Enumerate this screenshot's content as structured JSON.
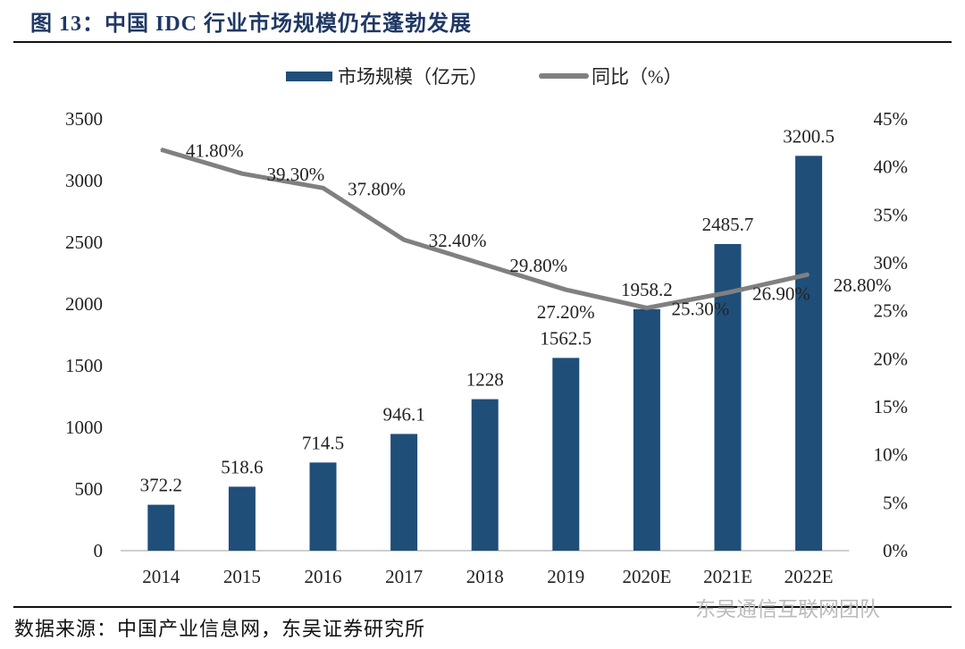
{
  "title": "图 13：中国 IDC 行业市场规模仍在蓬勃发展",
  "source": "数据来源：中国产业信息网，东吴证券研究所",
  "watermark": "东吴通信互联网团队",
  "colors": {
    "bar": "#1f4e79",
    "line": "#808080",
    "title": "#1f3864"
  },
  "chart_data": {
    "type": "bar+line",
    "categories": [
      "2014",
      "2015",
      "2016",
      "2017",
      "2018",
      "2019",
      "2020E",
      "2021E",
      "2022E"
    ],
    "series": [
      {
        "name": "市场规模（亿元）",
        "type": "bar",
        "axis": "left",
        "values": [
          372.2,
          518.6,
          714.5,
          946.1,
          1228,
          1562.5,
          1958.2,
          2485.7,
          3200.5
        ],
        "labels": [
          "372.2",
          "518.6",
          "714.5",
          "946.1",
          "1228",
          "1562.5",
          "1958.2",
          "2485.7",
          "3200.5"
        ]
      },
      {
        "name": "同比（%）",
        "type": "line",
        "axis": "right",
        "values": [
          41.8,
          39.3,
          37.8,
          32.4,
          29.8,
          27.2,
          25.3,
          26.9,
          28.8
        ],
        "labels": [
          "41.80%",
          "39.30%",
          "37.80%",
          "32.40%",
          "29.80%",
          "27.20%",
          "25.30%",
          "26.90%",
          "28.80%"
        ]
      }
    ],
    "ylim_left": [
      0,
      3500
    ],
    "yticks_left": [
      "0",
      "500",
      "1000",
      "1500",
      "2000",
      "2500",
      "3000",
      "3500"
    ],
    "ylim_right": [
      0,
      45
    ],
    "yticks_right": [
      "0%",
      "5%",
      "10%",
      "15%",
      "20%",
      "25%",
      "30%",
      "35%",
      "40%",
      "45%"
    ],
    "grid": false,
    "legend": "top"
  }
}
